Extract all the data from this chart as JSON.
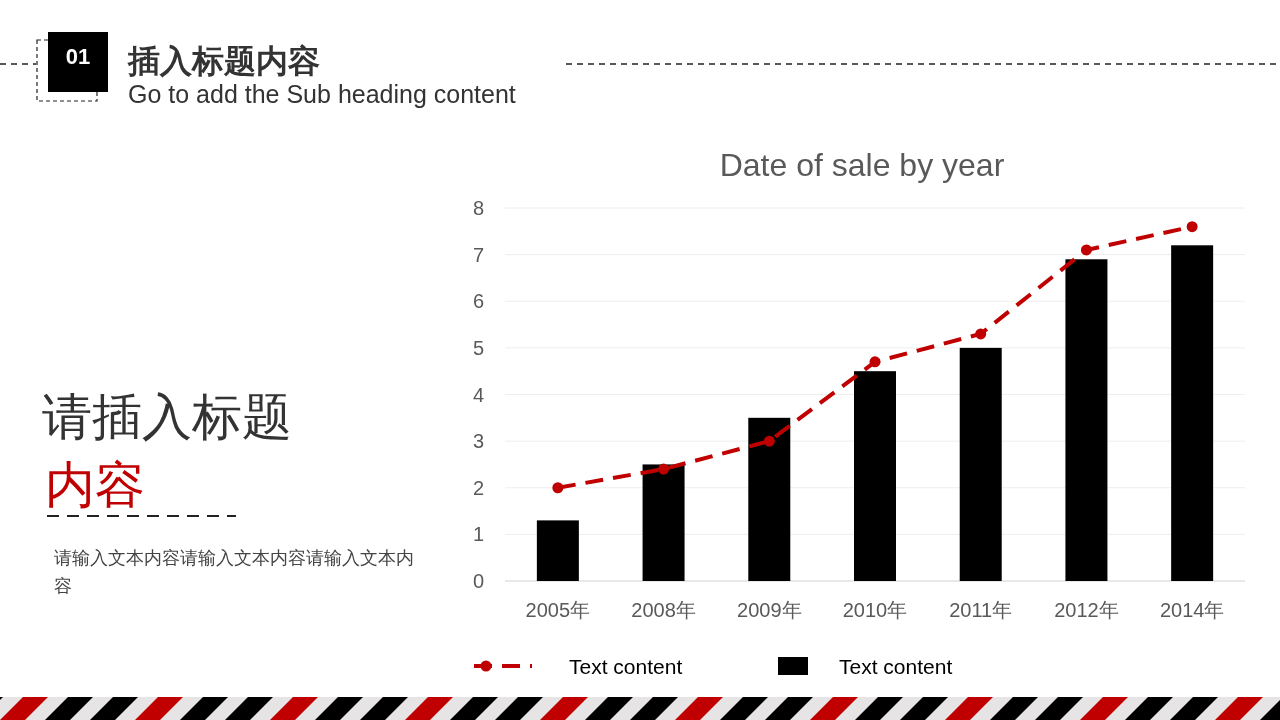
{
  "chart_data": {
    "type": "bar",
    "title": "Date of sale by year",
    "categories": [
      "2005年",
      "2008年",
      "2009年",
      "2010年",
      "2011年",
      "2012年",
      "2014年"
    ],
    "series": [
      {
        "name": "Text content",
        "type": "line",
        "color": "#c00000",
        "marker": "circle",
        "line_style": "dashed",
        "values": [
          2.0,
          2.4,
          3.0,
          4.7,
          5.3,
          7.1,
          7.6
        ]
      },
      {
        "name": "Text content",
        "color": "#000000",
        "values": [
          1.3,
          2.5,
          3.5,
          4.5,
          5.0,
          6.9,
          7.2
        ]
      }
    ],
    "ylim": [
      0,
      8
    ],
    "yticks": [
      0,
      1,
      2,
      3,
      4,
      5,
      6,
      7,
      8
    ],
    "grid": "y",
    "legend": "bottom",
    "annotations": [
      "01",
      "插入标题内容",
      "Go to add the Sub heading content",
      "请插入标题",
      "内容",
      "请输入文本内容请输入文本内容请输入文本内容"
    ]
  }
}
